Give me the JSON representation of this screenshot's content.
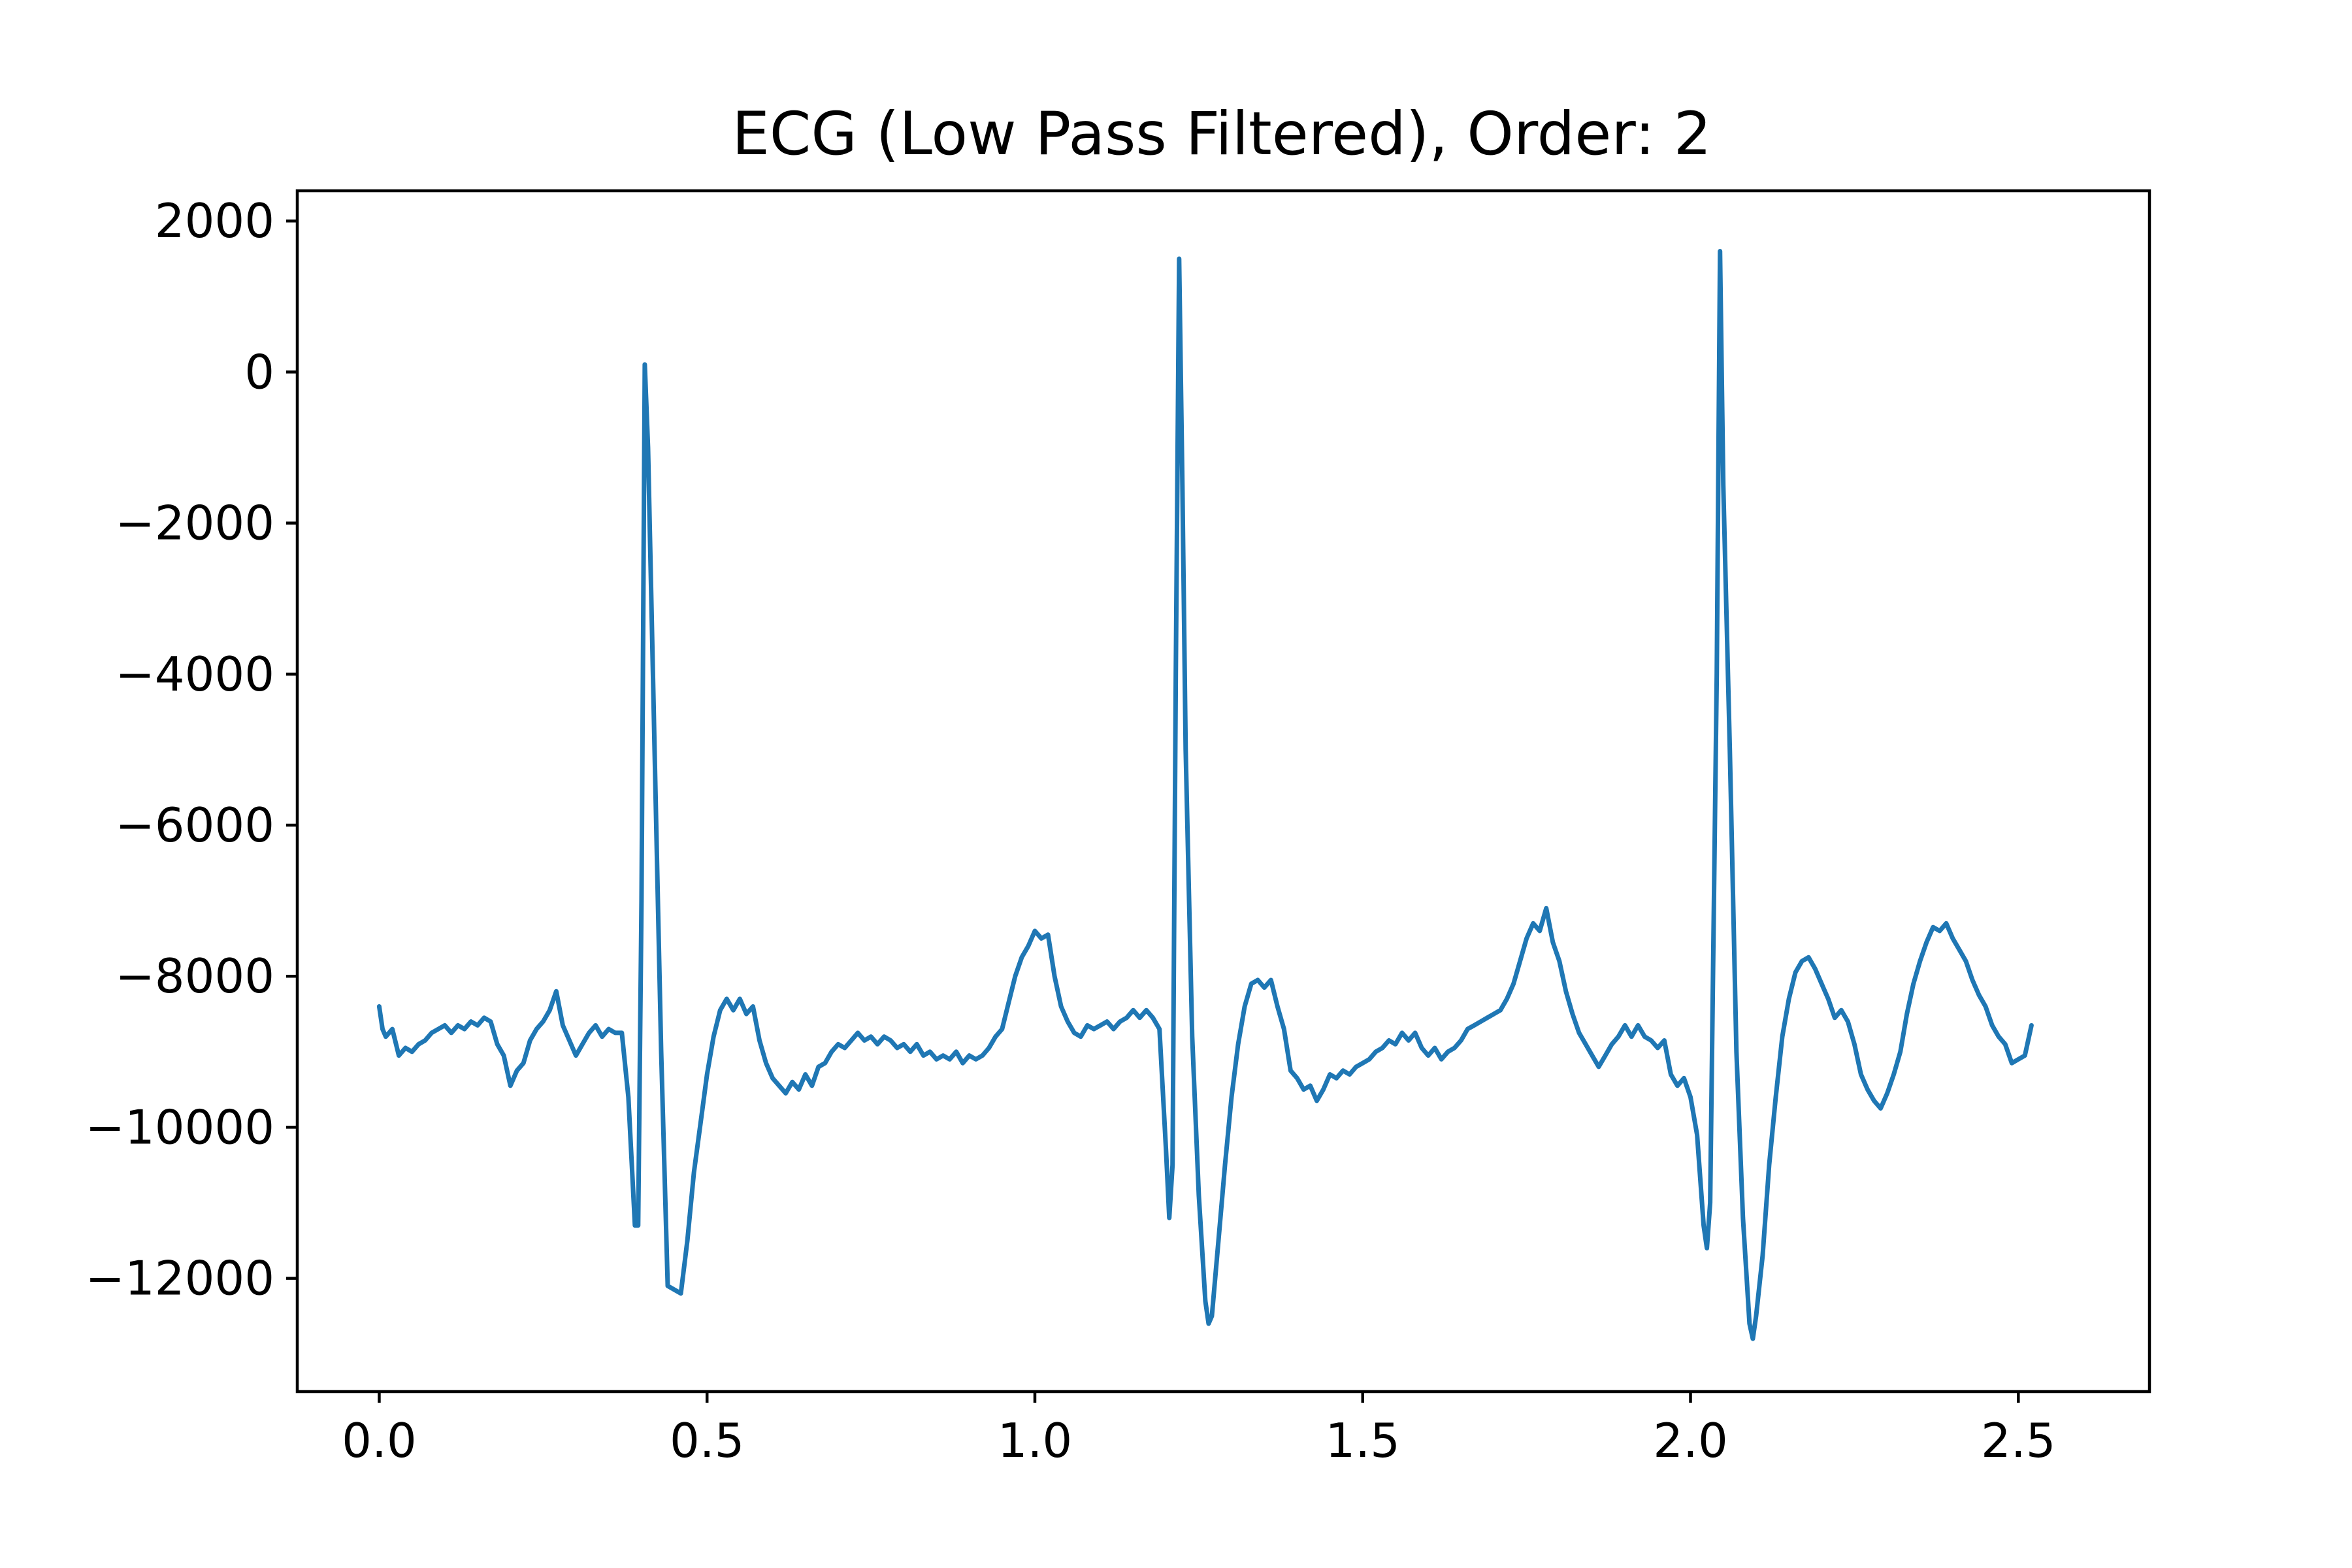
{
  "chart_data": {
    "type": "line",
    "title": "ECG (Low Pass Filtered), Order: 2",
    "xlabel": "",
    "ylabel": "",
    "xlim": [
      -0.125,
      2.7
    ],
    "ylim": [
      -13500,
      2400
    ],
    "x_ticks": [
      0.0,
      0.5,
      1.0,
      1.5,
      2.0,
      2.5
    ],
    "x_tick_labels": [
      "0.0",
      "0.5",
      "1.0",
      "1.5",
      "2.0",
      "2.5"
    ],
    "y_ticks": [
      2000,
      0,
      -2000,
      -4000,
      -6000,
      -8000,
      -10000,
      -12000
    ],
    "y_tick_labels": [
      "2000",
      "0",
      "−2000",
      "−4000",
      "−6000",
      "−8000",
      "−10000",
      "−12000"
    ],
    "grid": false,
    "series": [
      {
        "color": "#1f77b4",
        "points": [
          [
            0.0,
            -8400
          ],
          [
            0.005,
            -8700
          ],
          [
            0.01,
            -8800
          ],
          [
            0.02,
            -8700
          ],
          [
            0.03,
            -9050
          ],
          [
            0.04,
            -8950
          ],
          [
            0.05,
            -9000
          ],
          [
            0.06,
            -8900
          ],
          [
            0.07,
            -8850
          ],
          [
            0.08,
            -8750
          ],
          [
            0.09,
            -8700
          ],
          [
            0.1,
            -8650
          ],
          [
            0.11,
            -8750
          ],
          [
            0.12,
            -8650
          ],
          [
            0.13,
            -8700
          ],
          [
            0.14,
            -8600
          ],
          [
            0.15,
            -8650
          ],
          [
            0.16,
            -8550
          ],
          [
            0.17,
            -8600
          ],
          [
            0.18,
            -8900
          ],
          [
            0.19,
            -9050
          ],
          [
            0.2,
            -9450
          ],
          [
            0.21,
            -9250
          ],
          [
            0.22,
            -9150
          ],
          [
            0.23,
            -8850
          ],
          [
            0.24,
            -8700
          ],
          [
            0.25,
            -8600
          ],
          [
            0.26,
            -8450
          ],
          [
            0.27,
            -8200
          ],
          [
            0.28,
            -8650
          ],
          [
            0.29,
            -8850
          ],
          [
            0.3,
            -9050
          ],
          [
            0.31,
            -8900
          ],
          [
            0.32,
            -8750
          ],
          [
            0.33,
            -8650
          ],
          [
            0.34,
            -8800
          ],
          [
            0.35,
            -8700
          ],
          [
            0.36,
            -8750
          ],
          [
            0.37,
            -8750
          ],
          [
            0.38,
            -9600
          ],
          [
            0.39,
            -11300
          ],
          [
            0.395,
            -11300
          ],
          [
            0.4,
            -7000
          ],
          [
            0.405,
            100
          ],
          [
            0.41,
            -1000
          ],
          [
            0.42,
            -5000
          ],
          [
            0.43,
            -9000
          ],
          [
            0.44,
            -12100
          ],
          [
            0.45,
            -12150
          ],
          [
            0.46,
            -12200
          ],
          [
            0.47,
            -11500
          ],
          [
            0.48,
            -10600
          ],
          [
            0.49,
            -9950
          ],
          [
            0.5,
            -9300
          ],
          [
            0.51,
            -8800
          ],
          [
            0.52,
            -8450
          ],
          [
            0.53,
            -8300
          ],
          [
            0.54,
            -8450
          ],
          [
            0.55,
            -8300
          ],
          [
            0.56,
            -8500
          ],
          [
            0.57,
            -8400
          ],
          [
            0.58,
            -8850
          ],
          [
            0.59,
            -9150
          ],
          [
            0.6,
            -9350
          ],
          [
            0.61,
            -9450
          ],
          [
            0.62,
            -9550
          ],
          [
            0.63,
            -9400
          ],
          [
            0.64,
            -9500
          ],
          [
            0.65,
            -9300
          ],
          [
            0.66,
            -9450
          ],
          [
            0.67,
            -9200
          ],
          [
            0.68,
            -9150
          ],
          [
            0.69,
            -9000
          ],
          [
            0.7,
            -8900
          ],
          [
            0.71,
            -8950
          ],
          [
            0.72,
            -8850
          ],
          [
            0.73,
            -8750
          ],
          [
            0.74,
            -8850
          ],
          [
            0.75,
            -8800
          ],
          [
            0.76,
            -8900
          ],
          [
            0.77,
            -8800
          ],
          [
            0.78,
            -8850
          ],
          [
            0.79,
            -8950
          ],
          [
            0.8,
            -8900
          ],
          [
            0.81,
            -9000
          ],
          [
            0.82,
            -8900
          ],
          [
            0.83,
            -9050
          ],
          [
            0.84,
            -9000
          ],
          [
            0.85,
            -9100
          ],
          [
            0.86,
            -9050
          ],
          [
            0.87,
            -9100
          ],
          [
            0.88,
            -9000
          ],
          [
            0.89,
            -9150
          ],
          [
            0.9,
            -9050
          ],
          [
            0.91,
            -9100
          ],
          [
            0.92,
            -9050
          ],
          [
            0.93,
            -8950
          ],
          [
            0.94,
            -8800
          ],
          [
            0.95,
            -8700
          ],
          [
            0.96,
            -8350
          ],
          [
            0.97,
            -8000
          ],
          [
            0.98,
            -7750
          ],
          [
            0.99,
            -7600
          ],
          [
            1.0,
            -7400
          ],
          [
            1.01,
            -7500
          ],
          [
            1.02,
            -7450
          ],
          [
            1.03,
            -8000
          ],
          [
            1.04,
            -8400
          ],
          [
            1.05,
            -8600
          ],
          [
            1.06,
            -8750
          ],
          [
            1.07,
            -8800
          ],
          [
            1.08,
            -8650
          ],
          [
            1.09,
            -8700
          ],
          [
            1.1,
            -8650
          ],
          [
            1.11,
            -8600
          ],
          [
            1.12,
            -8700
          ],
          [
            1.13,
            -8600
          ],
          [
            1.14,
            -8550
          ],
          [
            1.15,
            -8450
          ],
          [
            1.16,
            -8550
          ],
          [
            1.17,
            -8450
          ],
          [
            1.18,
            -8550
          ],
          [
            1.19,
            -8700
          ],
          [
            1.2,
            -10300
          ],
          [
            1.205,
            -11200
          ],
          [
            1.21,
            -10500
          ],
          [
            1.215,
            -4000
          ],
          [
            1.22,
            1500
          ],
          [
            1.225,
            -1500
          ],
          [
            1.23,
            -5000
          ],
          [
            1.24,
            -8800
          ],
          [
            1.25,
            -10900
          ],
          [
            1.26,
            -12300
          ],
          [
            1.265,
            -12600
          ],
          [
            1.27,
            -12500
          ],
          [
            1.28,
            -11500
          ],
          [
            1.29,
            -10500
          ],
          [
            1.3,
            -9600
          ],
          [
            1.31,
            -8900
          ],
          [
            1.32,
            -8400
          ],
          [
            1.33,
            -8100
          ],
          [
            1.34,
            -8050
          ],
          [
            1.35,
            -8150
          ],
          [
            1.36,
            -8050
          ],
          [
            1.37,
            -8400
          ],
          [
            1.38,
            -8700
          ],
          [
            1.39,
            -9250
          ],
          [
            1.4,
            -9350
          ],
          [
            1.41,
            -9500
          ],
          [
            1.42,
            -9450
          ],
          [
            1.43,
            -9650
          ],
          [
            1.44,
            -9500
          ],
          [
            1.45,
            -9300
          ],
          [
            1.46,
            -9350
          ],
          [
            1.47,
            -9250
          ],
          [
            1.48,
            -9300
          ],
          [
            1.49,
            -9200
          ],
          [
            1.5,
            -9150
          ],
          [
            1.51,
            -9100
          ],
          [
            1.52,
            -9000
          ],
          [
            1.53,
            -8950
          ],
          [
            1.54,
            -8850
          ],
          [
            1.55,
            -8900
          ],
          [
            1.56,
            -8750
          ],
          [
            1.57,
            -8850
          ],
          [
            1.58,
            -8750
          ],
          [
            1.59,
            -8950
          ],
          [
            1.6,
            -9050
          ],
          [
            1.61,
            -8950
          ],
          [
            1.62,
            -9100
          ],
          [
            1.63,
            -9000
          ],
          [
            1.64,
            -8950
          ],
          [
            1.65,
            -8850
          ],
          [
            1.66,
            -8700
          ],
          [
            1.67,
            -8650
          ],
          [
            1.68,
            -8600
          ],
          [
            1.69,
            -8550
          ],
          [
            1.7,
            -8500
          ],
          [
            1.71,
            -8450
          ],
          [
            1.72,
            -8300
          ],
          [
            1.73,
            -8100
          ],
          [
            1.74,
            -7800
          ],
          [
            1.75,
            -7500
          ],
          [
            1.76,
            -7300
          ],
          [
            1.77,
            -7400
          ],
          [
            1.78,
            -7100
          ],
          [
            1.79,
            -7550
          ],
          [
            1.8,
            -7800
          ],
          [
            1.81,
            -8200
          ],
          [
            1.82,
            -8500
          ],
          [
            1.83,
            -8750
          ],
          [
            1.84,
            -8900
          ],
          [
            1.85,
            -9050
          ],
          [
            1.86,
            -9200
          ],
          [
            1.87,
            -9050
          ],
          [
            1.88,
            -8900
          ],
          [
            1.89,
            -8800
          ],
          [
            1.9,
            -8650
          ],
          [
            1.91,
            -8800
          ],
          [
            1.92,
            -8650
          ],
          [
            1.93,
            -8800
          ],
          [
            1.94,
            -8850
          ],
          [
            1.95,
            -8950
          ],
          [
            1.96,
            -8850
          ],
          [
            1.97,
            -9300
          ],
          [
            1.98,
            -9450
          ],
          [
            1.99,
            -9350
          ],
          [
            2.0,
            -9600
          ],
          [
            2.01,
            -10100
          ],
          [
            2.02,
            -11300
          ],
          [
            2.025,
            -11600
          ],
          [
            2.03,
            -11000
          ],
          [
            2.04,
            -4000
          ],
          [
            2.045,
            1600
          ],
          [
            2.05,
            -1500
          ],
          [
            2.06,
            -5000
          ],
          [
            2.07,
            -9000
          ],
          [
            2.08,
            -11200
          ],
          [
            2.09,
            -12600
          ],
          [
            2.095,
            -12800
          ],
          [
            2.1,
            -12500
          ],
          [
            2.11,
            -11700
          ],
          [
            2.12,
            -10500
          ],
          [
            2.13,
            -9600
          ],
          [
            2.14,
            -8800
          ],
          [
            2.15,
            -8300
          ],
          [
            2.16,
            -7950
          ],
          [
            2.17,
            -7800
          ],
          [
            2.18,
            -7750
          ],
          [
            2.19,
            -7900
          ],
          [
            2.2,
            -8100
          ],
          [
            2.21,
            -8300
          ],
          [
            2.22,
            -8550
          ],
          [
            2.23,
            -8450
          ],
          [
            2.24,
            -8600
          ],
          [
            2.25,
            -8900
          ],
          [
            2.26,
            -9300
          ],
          [
            2.27,
            -9500
          ],
          [
            2.28,
            -9650
          ],
          [
            2.29,
            -9750
          ],
          [
            2.3,
            -9550
          ],
          [
            2.31,
            -9300
          ],
          [
            2.32,
            -9000
          ],
          [
            2.33,
            -8500
          ],
          [
            2.34,
            -8100
          ],
          [
            2.35,
            -7800
          ],
          [
            2.36,
            -7550
          ],
          [
            2.37,
            -7350
          ],
          [
            2.38,
            -7400
          ],
          [
            2.39,
            -7300
          ],
          [
            2.4,
            -7500
          ],
          [
            2.41,
            -7650
          ],
          [
            2.42,
            -7800
          ],
          [
            2.43,
            -8050
          ],
          [
            2.44,
            -8250
          ],
          [
            2.45,
            -8400
          ],
          [
            2.46,
            -8650
          ],
          [
            2.47,
            -8800
          ],
          [
            2.48,
            -8900
          ],
          [
            2.49,
            -9150
          ],
          [
            2.5,
            -9100
          ],
          [
            2.51,
            -9050
          ],
          [
            2.52,
            -8650
          ]
        ]
      }
    ]
  }
}
